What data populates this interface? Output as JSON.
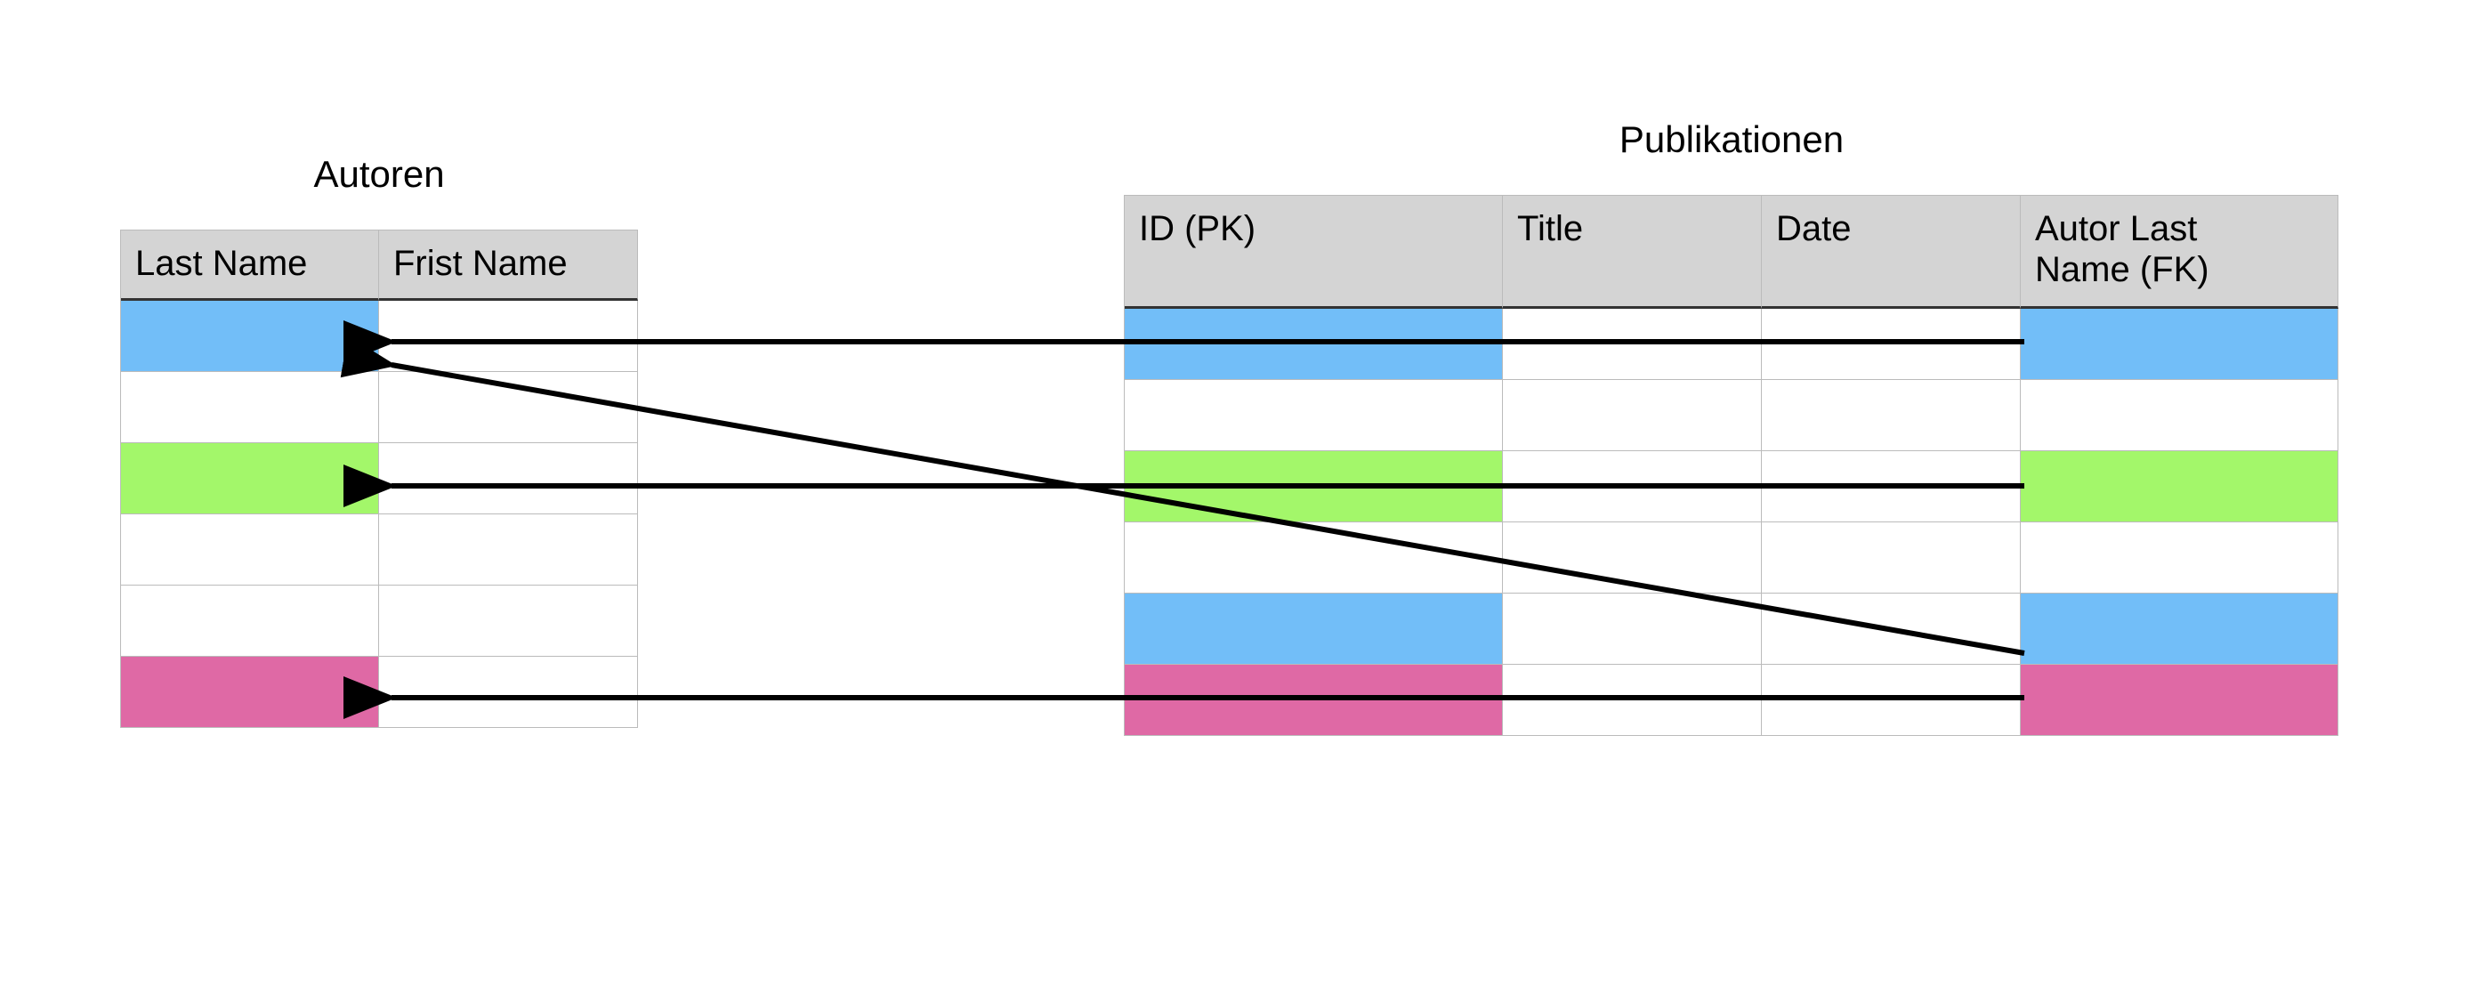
{
  "autoren": {
    "title": "Autoren",
    "columns": [
      "Last Name",
      "Frist Name"
    ]
  },
  "publikationen": {
    "title": "Publikationen",
    "columns": [
      "ID (PK)",
      "Title",
      "Date",
      "Autor Last Name (FK)"
    ]
  }
}
